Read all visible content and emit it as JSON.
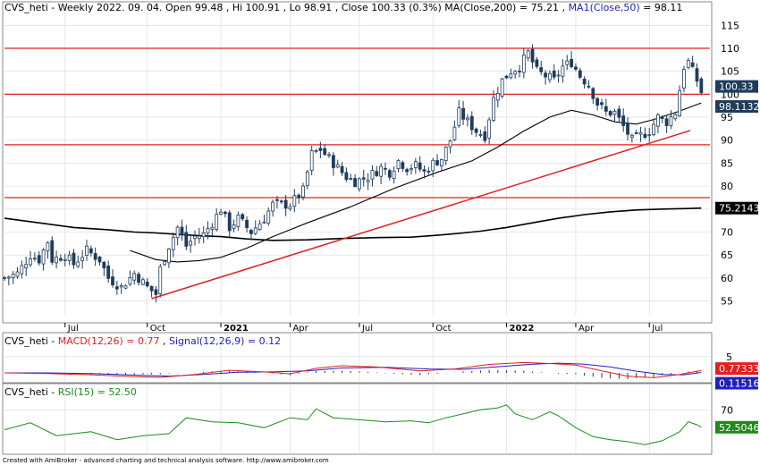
{
  "header": {
    "symbol": "CVS_heti",
    "period": "Weekly",
    "date": "2022. 09. 04.",
    "open": "Open 99.48",
    "hi": "Hi 100.91",
    "lo": "Lo 98.91",
    "close": "Close 100.33 (0.3%)",
    "ma200": "MA(Close,200) = 75.21",
    "ma1_label": "MA1(Close,50)",
    "ma1_value": "= 98.11"
  },
  "macd_header": {
    "symbol": "CVS_heti",
    "macd": "MACD(12,26) = 0.77",
    "signal": "Signal(12,26,9) = 0.12"
  },
  "rsi_header": {
    "symbol": "CVS_heti",
    "rsi": "RSI(15) = 52.50"
  },
  "footer": "Created with AmiBroker - advanced charting and technical analysis software. http://www.amibroker.com",
  "colors": {
    "up": "#ffffff",
    "down": "#1f3c5b",
    "candle_outline": "#1f3c5b",
    "ma50": "#000000",
    "ma200": "#000000",
    "hline": "#e02020",
    "trend": "#e02020",
    "macd": "#e02020",
    "signal": "#2020c0",
    "rsi": "#1a8c1a",
    "tag_close": "#1f3c5b",
    "tag_ma50": "#1f3c5b",
    "tag_ma200": "#000000",
    "tag_macd": "#e02020",
    "tag_signal": "#2020c0",
    "tag_rsi": "#1a8c1a",
    "grid": "#d8d8d8"
  },
  "chart_data": [
    {
      "type": "candlestick",
      "name": "price",
      "ylim": [
        52,
        117
      ],
      "yticks": [
        55,
        60,
        65,
        70,
        75,
        80,
        85,
        90,
        95,
        100,
        105,
        110,
        115
      ],
      "xlim": [
        0,
        163
      ],
      "xticks": [
        {
          "label": "Jul",
          "week": 14,
          "bold": false
        },
        {
          "label": "Oct",
          "week": 33,
          "bold": false
        },
        {
          "label": "2021",
          "week": 50,
          "bold": true
        },
        {
          "label": "Apr",
          "week": 66,
          "bold": false
        },
        {
          "label": "Jul",
          "week": 82,
          "bold": false
        },
        {
          "label": "Oct",
          "week": 99,
          "bold": false
        },
        {
          "label": "2022",
          "week": 116,
          "bold": true
        },
        {
          "label": "Apr",
          "week": 132,
          "bold": false
        },
        {
          "label": "Jul",
          "week": 149,
          "bold": false
        }
      ],
      "horizontal_levels": [
        110,
        100,
        89,
        77.5
      ],
      "trendline": {
        "from": [
          34,
          55.5
        ],
        "to": [
          170,
          95.5
        ]
      },
      "close_path": [
        [
          0,
          60
        ],
        [
          3,
          61
        ],
        [
          6,
          65
        ],
        [
          8,
          64
        ],
        [
          10,
          68
        ],
        [
          11,
          64
        ],
        [
          14,
          65
        ],
        [
          16,
          63
        ],
        [
          19,
          66
        ],
        [
          22,
          64
        ],
        [
          24,
          60
        ],
        [
          27,
          58
        ],
        [
          30,
          61
        ],
        [
          33,
          58
        ],
        [
          35,
          56.5
        ],
        [
          36,
          62
        ],
        [
          38,
          67
        ],
        [
          40,
          71
        ],
        [
          42,
          67
        ],
        [
          44,
          69
        ],
        [
          46,
          69.5
        ],
        [
          48,
          72
        ],
        [
          50,
          75
        ],
        [
          52,
          71
        ],
        [
          54,
          73
        ],
        [
          57,
          70
        ],
        [
          60,
          73
        ],
        [
          62,
          76
        ],
        [
          66,
          76
        ],
        [
          69,
          79
        ],
        [
          71,
          87
        ],
        [
          73,
          88
        ],
        [
          75,
          86
        ],
        [
          77,
          84
        ],
        [
          79,
          82
        ],
        [
          81,
          81
        ],
        [
          84,
          82
        ],
        [
          87,
          84
        ],
        [
          89,
          83
        ],
        [
          91,
          85.5
        ],
        [
          93,
          84
        ],
        [
          95,
          84.5
        ],
        [
          97,
          83
        ],
        [
          99,
          85
        ],
        [
          101,
          86
        ],
        [
          103,
          90
        ],
        [
          105,
          96
        ],
        [
          107,
          94
        ],
        [
          109,
          92
        ],
        [
          111,
          91
        ],
        [
          113,
          99
        ],
        [
          115,
          103
        ],
        [
          117,
          105
        ],
        [
          119,
          106
        ],
        [
          121,
          109
        ],
        [
          123,
          105
        ],
        [
          125,
          104
        ],
        [
          127,
          103
        ],
        [
          129,
          106
        ],
        [
          131,
          107
        ],
        [
          133,
          104
        ],
        [
          135,
          102
        ],
        [
          137,
          98
        ],
        [
          139,
          96
        ],
        [
          141,
          96
        ],
        [
          143,
          93
        ],
        [
          145,
          90
        ],
        [
          147,
          91
        ],
        [
          149,
          92
        ],
        [
          151,
          95
        ],
        [
          153,
          94
        ],
        [
          155,
          96
        ],
        [
          156,
          101
        ],
        [
          157,
          106
        ],
        [
          158,
          107
        ],
        [
          159,
          105
        ],
        [
          160,
          103
        ],
        [
          161,
          100.33
        ]
      ],
      "close_last": 100.33,
      "ma50_path": [
        [
          29,
          66
        ],
        [
          35,
          64
        ],
        [
          40,
          63.5
        ],
        [
          45,
          63.8
        ],
        [
          50,
          64.5
        ],
        [
          56,
          66.5
        ],
        [
          62,
          69
        ],
        [
          70,
          72
        ],
        [
          80,
          75.5
        ],
        [
          90,
          79.5
        ],
        [
          100,
          83
        ],
        [
          108,
          85.5
        ],
        [
          114,
          88.5
        ],
        [
          120,
          92
        ],
        [
          126,
          95
        ],
        [
          131,
          96.5
        ],
        [
          136,
          95.5
        ],
        [
          141,
          94
        ],
        [
          146,
          93.5
        ],
        [
          150,
          94.5
        ],
        [
          155,
          96
        ],
        [
          161,
          98.11
        ]
      ],
      "ma50_last": 98.11,
      "ma200_path": [
        [
          0,
          73
        ],
        [
          8,
          72
        ],
        [
          16,
          71
        ],
        [
          24,
          70.5
        ],
        [
          30,
          70
        ],
        [
          35,
          69.8
        ],
        [
          40,
          69.5
        ],
        [
          45,
          69.2
        ],
        [
          50,
          69
        ],
        [
          56,
          68.5
        ],
        [
          62,
          68.2
        ],
        [
          70,
          68.3
        ],
        [
          78,
          68.6
        ],
        [
          86,
          68.8
        ],
        [
          94,
          68.9
        ],
        [
          100,
          69.3
        ],
        [
          106,
          69.8
        ],
        [
          110,
          70.2
        ],
        [
          116,
          71
        ],
        [
          122,
          72
        ],
        [
          128,
          73
        ],
        [
          134,
          73.8
        ],
        [
          140,
          74.4
        ],
        [
          146,
          74.8
        ],
        [
          152,
          75
        ],
        [
          157,
          75.1
        ],
        [
          161,
          75.21
        ]
      ],
      "ma200_last": 75.21
    },
    {
      "type": "line",
      "name": "MACD",
      "ylim": [
        -2.5,
        8
      ],
      "yticks": [
        5
      ],
      "macd_path": [
        [
          0,
          0
        ],
        [
          10,
          -0.2
        ],
        [
          20,
          -0.6
        ],
        [
          30,
          -1.2
        ],
        [
          36,
          -1.4
        ],
        [
          44,
          -0.5
        ],
        [
          52,
          0.8
        ],
        [
          60,
          0.3
        ],
        [
          66,
          -0.3
        ],
        [
          72,
          1.4
        ],
        [
          78,
          2.2
        ],
        [
          86,
          1.8
        ],
        [
          96,
          0.6
        ],
        [
          104,
          1.2
        ],
        [
          112,
          2.6
        ],
        [
          120,
          3.2
        ],
        [
          126,
          2.9
        ],
        [
          132,
          2.4
        ],
        [
          138,
          0.6
        ],
        [
          144,
          -1.0
        ],
        [
          150,
          -1.5
        ],
        [
          156,
          -0.5
        ],
        [
          161,
          0.77
        ]
      ],
      "signal_path": [
        [
          0,
          0
        ],
        [
          10,
          0
        ],
        [
          20,
          -0.2
        ],
        [
          30,
          -0.7
        ],
        [
          38,
          -1.0
        ],
        [
          46,
          -0.5
        ],
        [
          54,
          0.2
        ],
        [
          62,
          0.3
        ],
        [
          70,
          0.6
        ],
        [
          78,
          1.5
        ],
        [
          88,
          1.7
        ],
        [
          98,
          1.2
        ],
        [
          106,
          1.1
        ],
        [
          114,
          1.9
        ],
        [
          122,
          2.7
        ],
        [
          128,
          3.0
        ],
        [
          134,
          2.7
        ],
        [
          140,
          1.8
        ],
        [
          146,
          0.5
        ],
        [
          152,
          -0.5
        ],
        [
          157,
          -0.6
        ],
        [
          161,
          0.12
        ]
      ],
      "macd_last": 0.77,
      "signal_last": 0.12
    },
    {
      "type": "line",
      "name": "RSI",
      "ylim": [
        28,
        82
      ],
      "yticks": [
        70
      ],
      "rsi_path": [
        [
          0,
          50
        ],
        [
          6,
          57
        ],
        [
          12,
          44
        ],
        [
          20,
          48
        ],
        [
          26,
          40
        ],
        [
          32,
          44
        ],
        [
          38,
          46
        ],
        [
          42,
          62
        ],
        [
          48,
          58
        ],
        [
          54,
          57
        ],
        [
          60,
          52
        ],
        [
          66,
          62
        ],
        [
          70,
          60
        ],
        [
          72,
          71
        ],
        [
          76,
          62
        ],
        [
          82,
          60
        ],
        [
          88,
          58
        ],
        [
          94,
          59
        ],
        [
          98,
          57
        ],
        [
          102,
          62
        ],
        [
          106,
          66
        ],
        [
          110,
          70
        ],
        [
          114,
          72
        ],
        [
          116,
          75
        ],
        [
          118,
          66
        ],
        [
          122,
          60
        ],
        [
          126,
          68
        ],
        [
          128,
          64
        ],
        [
          132,
          52
        ],
        [
          136,
          43
        ],
        [
          140,
          40
        ],
        [
          144,
          38
        ],
        [
          148,
          35
        ],
        [
          152,
          39
        ],
        [
          156,
          48
        ],
        [
          158,
          58
        ],
        [
          160,
          55
        ],
        [
          161,
          52.5
        ]
      ],
      "rsi_last": 52.5
    }
  ]
}
